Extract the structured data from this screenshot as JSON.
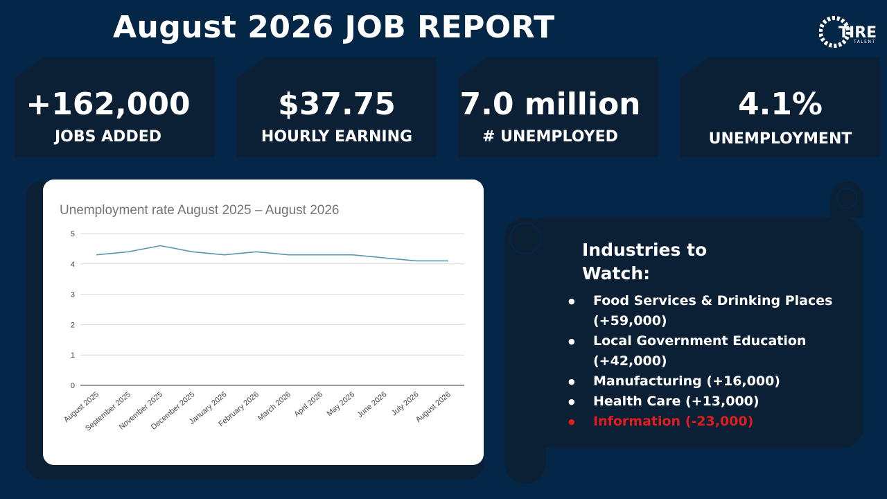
{
  "page": {
    "title": "August 2026 JOB REPORT",
    "logo_text": "TIRE",
    "logo_subtext": "TALENT",
    "colors": {
      "background": "#052747",
      "panel": "#0b1f35",
      "line": "#5b95b0",
      "negative": "#e01e1e"
    }
  },
  "stats": [
    {
      "value": "+162,000",
      "label": "JOBS ADDED"
    },
    {
      "value": "$37.75",
      "label": "HOURLY EARNING"
    },
    {
      "value": "7.0 million",
      "label": "# UNEMPLOYED"
    },
    {
      "value": "4.1%",
      "label": "UNEMPLOYMENT"
    }
  ],
  "industries": {
    "heading": "Industries to Watch:",
    "items": [
      {
        "text": "Food Services & Drinking Places (+59,000)"
      },
      {
        "text": "Local Government Education (+42,000)"
      },
      {
        "text": "Manufacturing (+16,000)"
      },
      {
        "text": "Health Care (+13,000)"
      },
      {
        "text": "Information  (-23,000)"
      }
    ]
  },
  "chart_data": {
    "type": "line",
    "title": "Unemployment rate August 2025 – August 2026",
    "xlabel": "",
    "ylabel": "",
    "categories": [
      "August 2025",
      "September 2025",
      "November 2025",
      "December 2025",
      "January 2026",
      "February 2026",
      "March 2026",
      "April 2026",
      "May 2026",
      "June 2026",
      "July 2026",
      "August 2026"
    ],
    "series": [
      {
        "values": [
          4.3,
          4.4,
          4.6,
          4.4,
          4.3,
          4.4,
          4.3,
          4.3,
          4.3,
          4.2,
          4.1,
          4.1
        ],
        "color": "#5b95b0"
      }
    ],
    "yticks": [
      "0",
      "1",
      "2",
      "3",
      "4",
      "5"
    ],
    "ylim": [
      0,
      5
    ],
    "grid": true,
    "legend": "none"
  }
}
